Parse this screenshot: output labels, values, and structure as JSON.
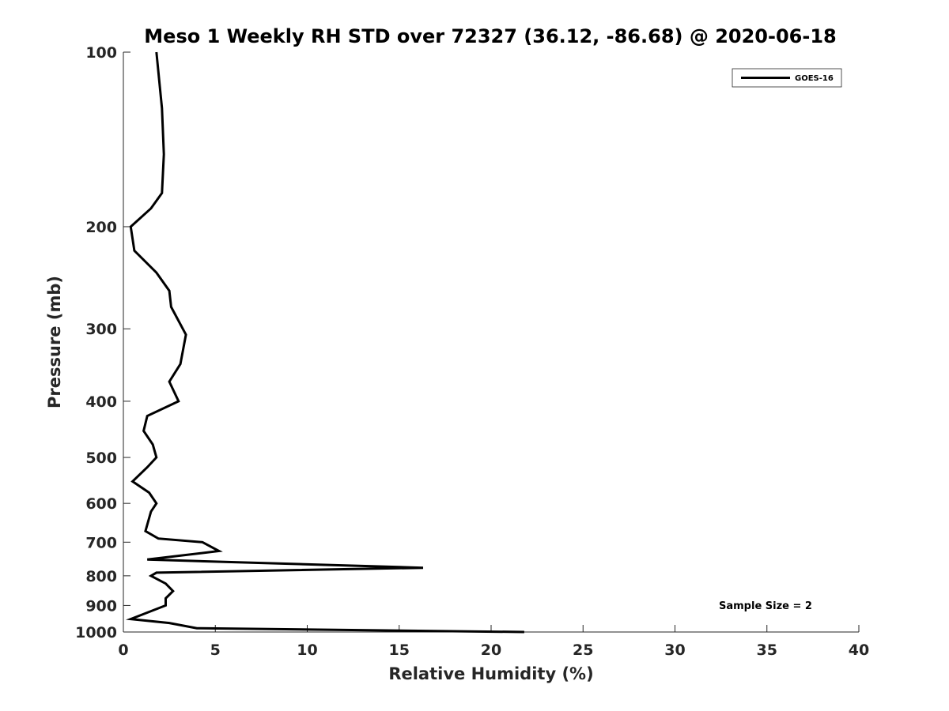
{
  "chart_data": {
    "type": "line",
    "title": "Meso 1 Weekly RH STD over 72327 (36.12, -86.68) @ 2020-06-18",
    "xlabel": "Relative Humidity (%)",
    "ylabel": "Pressure (mb)",
    "xlim": [
      0,
      40
    ],
    "ylim": [
      100,
      1000
    ],
    "y_scale": "log",
    "y_reversed": true,
    "x_ticks": [
      0,
      5,
      10,
      15,
      20,
      25,
      30,
      35,
      40
    ],
    "y_ticks": [
      100,
      200,
      300,
      400,
      500,
      600,
      700,
      800,
      900,
      1000
    ],
    "grid": false,
    "legend": {
      "position": "top-right"
    },
    "annotation": "Sample Size = 2",
    "series": [
      {
        "name": "GOES-16",
        "color": "#000000",
        "points": [
          {
            "x": 1.8,
            "p": 100
          },
          {
            "x": 2.1,
            "p": 125
          },
          {
            "x": 2.2,
            "p": 150
          },
          {
            "x": 2.1,
            "p": 175
          },
          {
            "x": 1.5,
            "p": 186
          },
          {
            "x": 0.4,
            "p": 200
          },
          {
            "x": 0.6,
            "p": 220
          },
          {
            "x": 1.8,
            "p": 240
          },
          {
            "x": 2.5,
            "p": 258
          },
          {
            "x": 2.6,
            "p": 275
          },
          {
            "x": 3.4,
            "p": 307
          },
          {
            "x": 3.1,
            "p": 345
          },
          {
            "x": 2.5,
            "p": 370
          },
          {
            "x": 3.0,
            "p": 400
          },
          {
            "x": 1.3,
            "p": 424
          },
          {
            "x": 1.1,
            "p": 450
          },
          {
            "x": 1.6,
            "p": 475
          },
          {
            "x": 1.8,
            "p": 500
          },
          {
            "x": 1.3,
            "p": 520
          },
          {
            "x": 0.5,
            "p": 550
          },
          {
            "x": 1.4,
            "p": 575
          },
          {
            "x": 1.8,
            "p": 600
          },
          {
            "x": 1.5,
            "p": 620
          },
          {
            "x": 1.2,
            "p": 670
          },
          {
            "x": 1.9,
            "p": 690
          },
          {
            "x": 4.3,
            "p": 700
          },
          {
            "x": 5.2,
            "p": 725
          },
          {
            "x": 1.3,
            "p": 750
          },
          {
            "x": 16.3,
            "p": 775
          },
          {
            "x": 1.8,
            "p": 790
          },
          {
            "x": 1.5,
            "p": 800
          },
          {
            "x": 2.3,
            "p": 825
          },
          {
            "x": 2.7,
            "p": 850
          },
          {
            "x": 2.3,
            "p": 875
          },
          {
            "x": 2.3,
            "p": 900
          },
          {
            "x": 0.4,
            "p": 950
          },
          {
            "x": 2.5,
            "p": 965
          },
          {
            "x": 4.0,
            "p": 985
          },
          {
            "x": 21.8,
            "p": 1000
          }
        ]
      }
    ]
  }
}
